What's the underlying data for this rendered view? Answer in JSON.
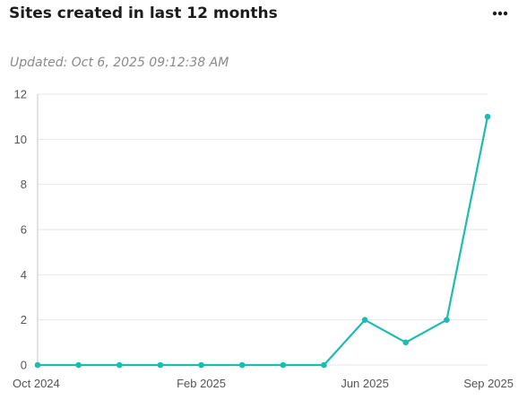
{
  "header": {
    "title": "Sites created in last 12 months",
    "more_icon": "more-horizontal-icon"
  },
  "updated_text": "Updated: Oct 6, 2025 09:12:38 AM",
  "colors": {
    "line": "#1ebcb0",
    "grid": "#e6e6e6",
    "axis": "#c8c8c8",
    "tick_text": "#555555"
  },
  "chart_data": {
    "type": "line",
    "title": "",
    "xlabel": "",
    "ylabel": "",
    "x": [
      "2024-10",
      "2024-11",
      "2024-12",
      "2025-01",
      "2025-02",
      "2025-03",
      "2025-04",
      "2025-05",
      "2025-06",
      "2025-07",
      "2025-08",
      "2025-09"
    ],
    "values": [
      0,
      0,
      0,
      0,
      0,
      0,
      0,
      0,
      2,
      1,
      2,
      11
    ],
    "x_ticks": [
      {
        "at": "2024-10",
        "label": "Oct 2024"
      },
      {
        "at": "2025-02",
        "label": "Feb 2025"
      },
      {
        "at": "2025-06",
        "label": "Jun 2025"
      },
      {
        "at": "2025-09",
        "label": "Sep 2025"
      }
    ],
    "ylim": [
      0,
      12
    ],
    "y_ticks": [
      0,
      2,
      4,
      6,
      8,
      10,
      12
    ],
    "grid": true,
    "legend": "none",
    "markers": true
  }
}
